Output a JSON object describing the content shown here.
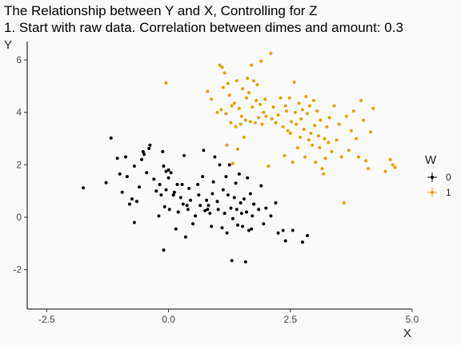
{
  "chart_data": {
    "type": "scatter",
    "title": "The Relationship between Y and X, Controlling for  Z",
    "subtitle": "1. Start with raw data. Correlation between dimes and amount: 0.3",
    "xlabel": "X",
    "ylabel": "Y",
    "xlim": [
      -2.9,
      5.0
    ],
    "ylim": [
      -3.5,
      6.7
    ],
    "x_ticks": [
      -2.5,
      0.0,
      2.5,
      5.0
    ],
    "x_tick_labels": [
      "-2.5",
      "0.0",
      "2.5",
      "5.0"
    ],
    "y_ticks": [
      -2,
      0,
      2,
      4,
      6
    ],
    "y_tick_labels": [
      "-2",
      "0",
      "2",
      "4",
      "6"
    ],
    "grid": false,
    "legend": {
      "title": "W",
      "placement": "right",
      "entries": [
        "0",
        "1"
      ]
    },
    "series": [
      {
        "name": "0",
        "color": "#000000",
        "points": [
          [
            -1.75,
            1.12
          ],
          [
            -1.28,
            1.32
          ],
          [
            -1.18,
            3.02
          ],
          [
            -1.05,
            2.25
          ],
          [
            -1.0,
            1.65
          ],
          [
            -0.95,
            0.95
          ],
          [
            -0.88,
            2.3
          ],
          [
            -0.85,
            1.55
          ],
          [
            -0.8,
            0.5
          ],
          [
            -0.75,
            0.7
          ],
          [
            -0.7,
            1.95
          ],
          [
            -0.7,
            -0.2
          ],
          [
            -0.65,
            0.6
          ],
          [
            -0.6,
            1.15
          ],
          [
            -0.55,
            2.2
          ],
          [
            -0.52,
            2.5
          ],
          [
            -0.5,
            2.4
          ],
          [
            -0.45,
            1.7
          ],
          [
            -0.4,
            2.62
          ],
          [
            -0.38,
            2.75
          ],
          [
            -0.3,
            1.45
          ],
          [
            -0.25,
            1.0
          ],
          [
            -0.2,
            0.05
          ],
          [
            -0.18,
            1.25
          ],
          [
            -0.15,
            0.85
          ],
          [
            -0.12,
            2.5
          ],
          [
            -0.1,
            1.95
          ],
          [
            -0.08,
            0.4
          ],
          [
            -0.05,
            1.05
          ],
          [
            -0.05,
            1.75
          ],
          [
            -0.1,
            -1.25
          ],
          [
            0.0,
            1.5
          ],
          [
            0.0,
            1.8
          ],
          [
            0.02,
            0.3
          ],
          [
            0.05,
            1.7
          ],
          [
            0.1,
            0.85
          ],
          [
            0.12,
            0.95
          ],
          [
            0.15,
            -0.45
          ],
          [
            0.18,
            1.25
          ],
          [
            0.2,
            0.2
          ],
          [
            0.25,
            0.75
          ],
          [
            0.28,
            1.25
          ],
          [
            0.3,
            0.5
          ],
          [
            0.32,
            2.35
          ],
          [
            0.35,
            -0.75
          ],
          [
            0.38,
            0.45
          ],
          [
            0.4,
            0.3
          ],
          [
            0.42,
            1.1
          ],
          [
            0.45,
            0.65
          ],
          [
            0.5,
            -0.25
          ],
          [
            0.55,
            0.05
          ],
          [
            0.6,
            1.25
          ],
          [
            0.62,
            0.85
          ],
          [
            0.65,
            0.45
          ],
          [
            0.7,
            1.55
          ],
          [
            0.72,
            2.55
          ],
          [
            0.75,
            0.25
          ],
          [
            0.78,
            0.65
          ],
          [
            0.8,
            0.3
          ],
          [
            0.82,
            0.45
          ],
          [
            0.85,
            0.15
          ],
          [
            0.88,
            -0.35
          ],
          [
            0.9,
            0.9
          ],
          [
            0.92,
            1.35
          ],
          [
            0.95,
            2.3
          ],
          [
            1.0,
            0.6
          ],
          [
            1.02,
            0.3
          ],
          [
            1.05,
            2.0
          ],
          [
            1.1,
            -0.4
          ],
          [
            1.12,
            1.05
          ],
          [
            1.15,
            0.15
          ],
          [
            1.18,
            1.55
          ],
          [
            1.2,
            -0.6
          ],
          [
            1.22,
            0.85
          ],
          [
            1.25,
            2.0
          ],
          [
            1.28,
            0.35
          ],
          [
            1.3,
            -1.65
          ],
          [
            1.32,
            -0.05
          ],
          [
            1.35,
            0.75
          ],
          [
            1.38,
            1.3
          ],
          [
            1.4,
            0.3
          ],
          [
            1.42,
            -0.3
          ],
          [
            1.45,
            1.65
          ],
          [
            1.48,
            0.55
          ],
          [
            1.5,
            0.15
          ],
          [
            1.52,
            -0.35
          ],
          [
            1.55,
            0.7
          ],
          [
            1.58,
            -1.7
          ],
          [
            1.6,
            0.2
          ],
          [
            1.62,
            1.5
          ],
          [
            1.65,
            -0.5
          ],
          [
            1.68,
            0.9
          ],
          [
            1.7,
            -0.45
          ],
          [
            1.72,
            0.05
          ],
          [
            1.75,
            0.5
          ],
          [
            1.85,
            0.3
          ],
          [
            1.9,
            1.2
          ],
          [
            1.95,
            -0.25
          ],
          [
            2.0,
            0.35
          ],
          [
            2.1,
            0.05
          ],
          [
            2.2,
            0.55
          ],
          [
            2.25,
            -0.6
          ],
          [
            2.35,
            -0.5
          ],
          [
            2.4,
            -0.9
          ],
          [
            2.55,
            -0.5
          ],
          [
            2.75,
            -0.95
          ],
          [
            2.85,
            -0.7
          ]
        ]
      },
      {
        "name": "1",
        "color": "#E6A000",
        "points": [
          [
            -0.05,
            5.12
          ],
          [
            0.8,
            4.8
          ],
          [
            0.88,
            4.5
          ],
          [
            1.0,
            4.0
          ],
          [
            1.05,
            5.8
          ],
          [
            1.08,
            4.1
          ],
          [
            1.1,
            5.72
          ],
          [
            1.12,
            4.95
          ],
          [
            1.15,
            5.5
          ],
          [
            1.18,
            3.95
          ],
          [
            1.2,
            2.75
          ],
          [
            1.22,
            5.1
          ],
          [
            1.25,
            4.65
          ],
          [
            1.28,
            3.6
          ],
          [
            1.3,
            4.25
          ],
          [
            1.32,
            2.05
          ],
          [
            1.35,
            4.35
          ],
          [
            1.38,
            3.45
          ],
          [
            1.4,
            5.2
          ],
          [
            1.42,
            2.6
          ],
          [
            1.45,
            4.15
          ],
          [
            1.48,
            3.55
          ],
          [
            1.5,
            3.85
          ],
          [
            1.52,
            4.9
          ],
          [
            1.55,
            3.05
          ],
          [
            1.58,
            3.7
          ],
          [
            1.6,
            4.55
          ],
          [
            1.62,
            5.3
          ],
          [
            1.65,
            4.75
          ],
          [
            1.68,
            3.65
          ],
          [
            1.7,
            5.8
          ],
          [
            1.72,
            4.2
          ],
          [
            1.75,
            5.2
          ],
          [
            1.78,
            3.6
          ],
          [
            1.8,
            4.45
          ],
          [
            1.82,
            5.05
          ],
          [
            1.85,
            3.8
          ],
          [
            1.88,
            4.3
          ],
          [
            1.9,
            5.95
          ],
          [
            1.92,
            3.55
          ],
          [
            1.95,
            4.0
          ],
          [
            1.98,
            4.5
          ],
          [
            2.0,
            3.85
          ],
          [
            2.05,
            1.95
          ],
          [
            2.1,
            6.25
          ],
          [
            2.12,
            3.75
          ],
          [
            2.15,
            4.2
          ],
          [
            2.2,
            3.6
          ],
          [
            2.25,
            3.9
          ],
          [
            2.3,
            4.55
          ],
          [
            2.35,
            3.45
          ],
          [
            2.38,
            2.35
          ],
          [
            2.4,
            4.25
          ],
          [
            2.42,
            4.05
          ],
          [
            2.45,
            3.3
          ],
          [
            2.48,
            4.55
          ],
          [
            2.5,
            3.2
          ],
          [
            2.52,
            3.65
          ],
          [
            2.55,
            2.1
          ],
          [
            2.58,
            5.15
          ],
          [
            2.6,
            4.0
          ],
          [
            2.62,
            3.55
          ],
          [
            2.65,
            2.65
          ],
          [
            2.68,
            4.35
          ],
          [
            2.7,
            3.05
          ],
          [
            2.72,
            3.75
          ],
          [
            2.75,
            4.1
          ],
          [
            2.78,
            3.35
          ],
          [
            2.8,
            2.3
          ],
          [
            2.82,
            4.6
          ],
          [
            2.85,
            3.95
          ],
          [
            2.88,
            2.95
          ],
          [
            2.9,
            4.25
          ],
          [
            2.92,
            3.2
          ],
          [
            2.95,
            2.75
          ],
          [
            2.98,
            4.45
          ],
          [
            3.0,
            3.5
          ],
          [
            3.02,
            2.1
          ],
          [
            3.05,
            4.05
          ],
          [
            3.08,
            3.1
          ],
          [
            3.1,
            2.65
          ],
          [
            3.12,
            3.7
          ],
          [
            3.15,
            1.85
          ],
          [
            3.18,
            1.65
          ],
          [
            3.2,
            3.0
          ],
          [
            3.22,
            2.25
          ],
          [
            3.25,
            3.45
          ],
          [
            3.28,
            2.85
          ],
          [
            3.3,
            3.8
          ],
          [
            3.35,
            2.5
          ],
          [
            3.4,
            4.25
          ],
          [
            3.45,
            2.95
          ],
          [
            3.5,
            3.55
          ],
          [
            3.55,
            2.3
          ],
          [
            3.6,
            0.55
          ],
          [
            3.65,
            3.85
          ],
          [
            3.7,
            2.55
          ],
          [
            3.75,
            3.3
          ],
          [
            3.8,
            4.05
          ],
          [
            3.85,
            3.0
          ],
          [
            3.9,
            2.3
          ],
          [
            3.95,
            4.45
          ],
          [
            4.0,
            3.7
          ],
          [
            4.05,
            2.15
          ],
          [
            4.1,
            1.85
          ],
          [
            4.15,
            3.25
          ],
          [
            4.2,
            4.15
          ],
          [
            4.45,
            1.75
          ],
          [
            4.55,
            2.2
          ],
          [
            4.6,
            2.0
          ],
          [
            4.65,
            1.9
          ]
        ]
      }
    ]
  }
}
